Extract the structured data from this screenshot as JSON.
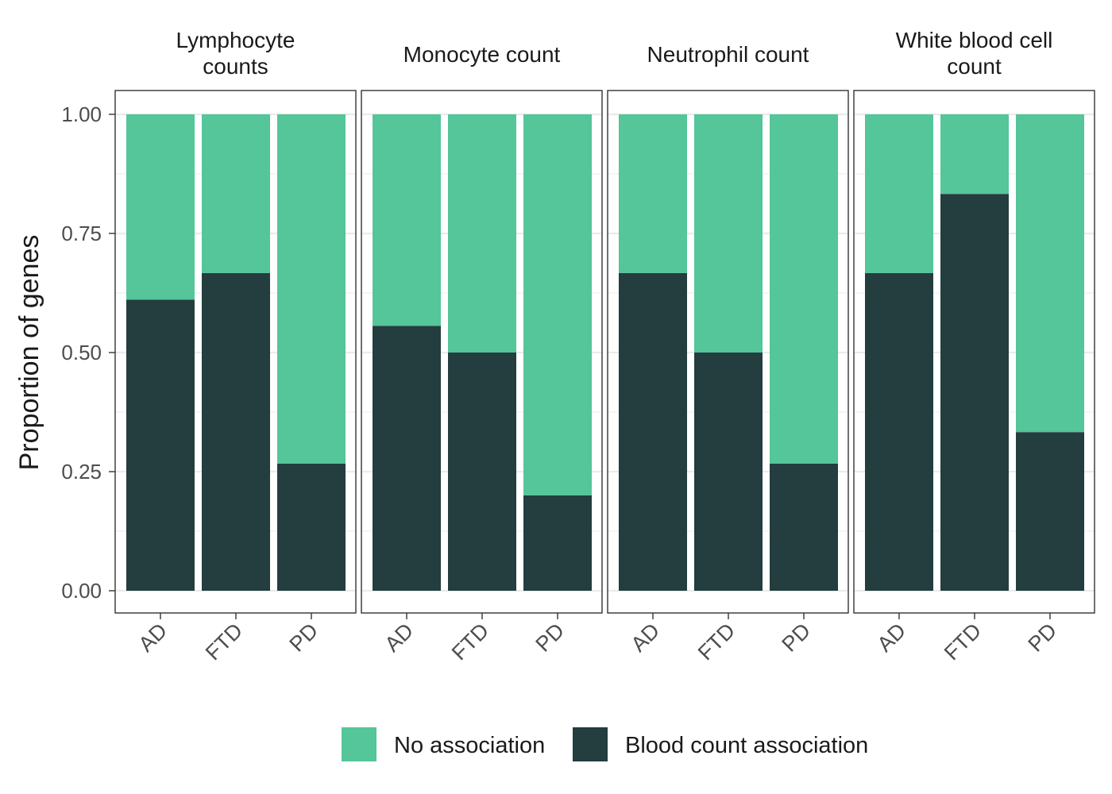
{
  "chart_data": {
    "type": "bar",
    "stacked": true,
    "ylabel": "Proportion of genes",
    "ylim": [
      0,
      1
    ],
    "yticks": [
      "0.00",
      "0.25",
      "0.50",
      "0.75",
      "1.00"
    ],
    "ytick_values": [
      0,
      0.25,
      0.5,
      0.75,
      1.0
    ],
    "categories": [
      "AD",
      "FTD",
      "PD"
    ],
    "grid": true,
    "legend_position": "bottom",
    "legend": [
      {
        "label": "No association",
        "color": "#55c59a"
      },
      {
        "label": "Blood count association",
        "color": "#243d3f"
      }
    ],
    "facets": [
      {
        "title_lines": [
          "Lymphocyte",
          "counts"
        ],
        "series": [
          {
            "name": "Blood count association",
            "values": [
              0.611,
              0.667,
              0.267
            ]
          },
          {
            "name": "No association",
            "values": [
              0.389,
              0.333,
              0.733
            ]
          }
        ]
      },
      {
        "title_lines": [
          "Monocyte count"
        ],
        "series": [
          {
            "name": "Blood count association",
            "values": [
              0.556,
              0.5,
              0.2
            ]
          },
          {
            "name": "No association",
            "values": [
              0.444,
              0.5,
              0.8
            ]
          }
        ]
      },
      {
        "title_lines": [
          "Neutrophil count"
        ],
        "series": [
          {
            "name": "Blood count association",
            "values": [
              0.667,
              0.5,
              0.267
            ]
          },
          {
            "name": "No association",
            "values": [
              0.333,
              0.5,
              0.733
            ]
          }
        ]
      },
      {
        "title_lines": [
          "White blood cell",
          "count"
        ],
        "series": [
          {
            "name": "Blood count association",
            "values": [
              0.667,
              0.833,
              0.333
            ]
          },
          {
            "name": "No association",
            "values": [
              0.333,
              0.167,
              0.667
            ]
          }
        ]
      }
    ]
  }
}
